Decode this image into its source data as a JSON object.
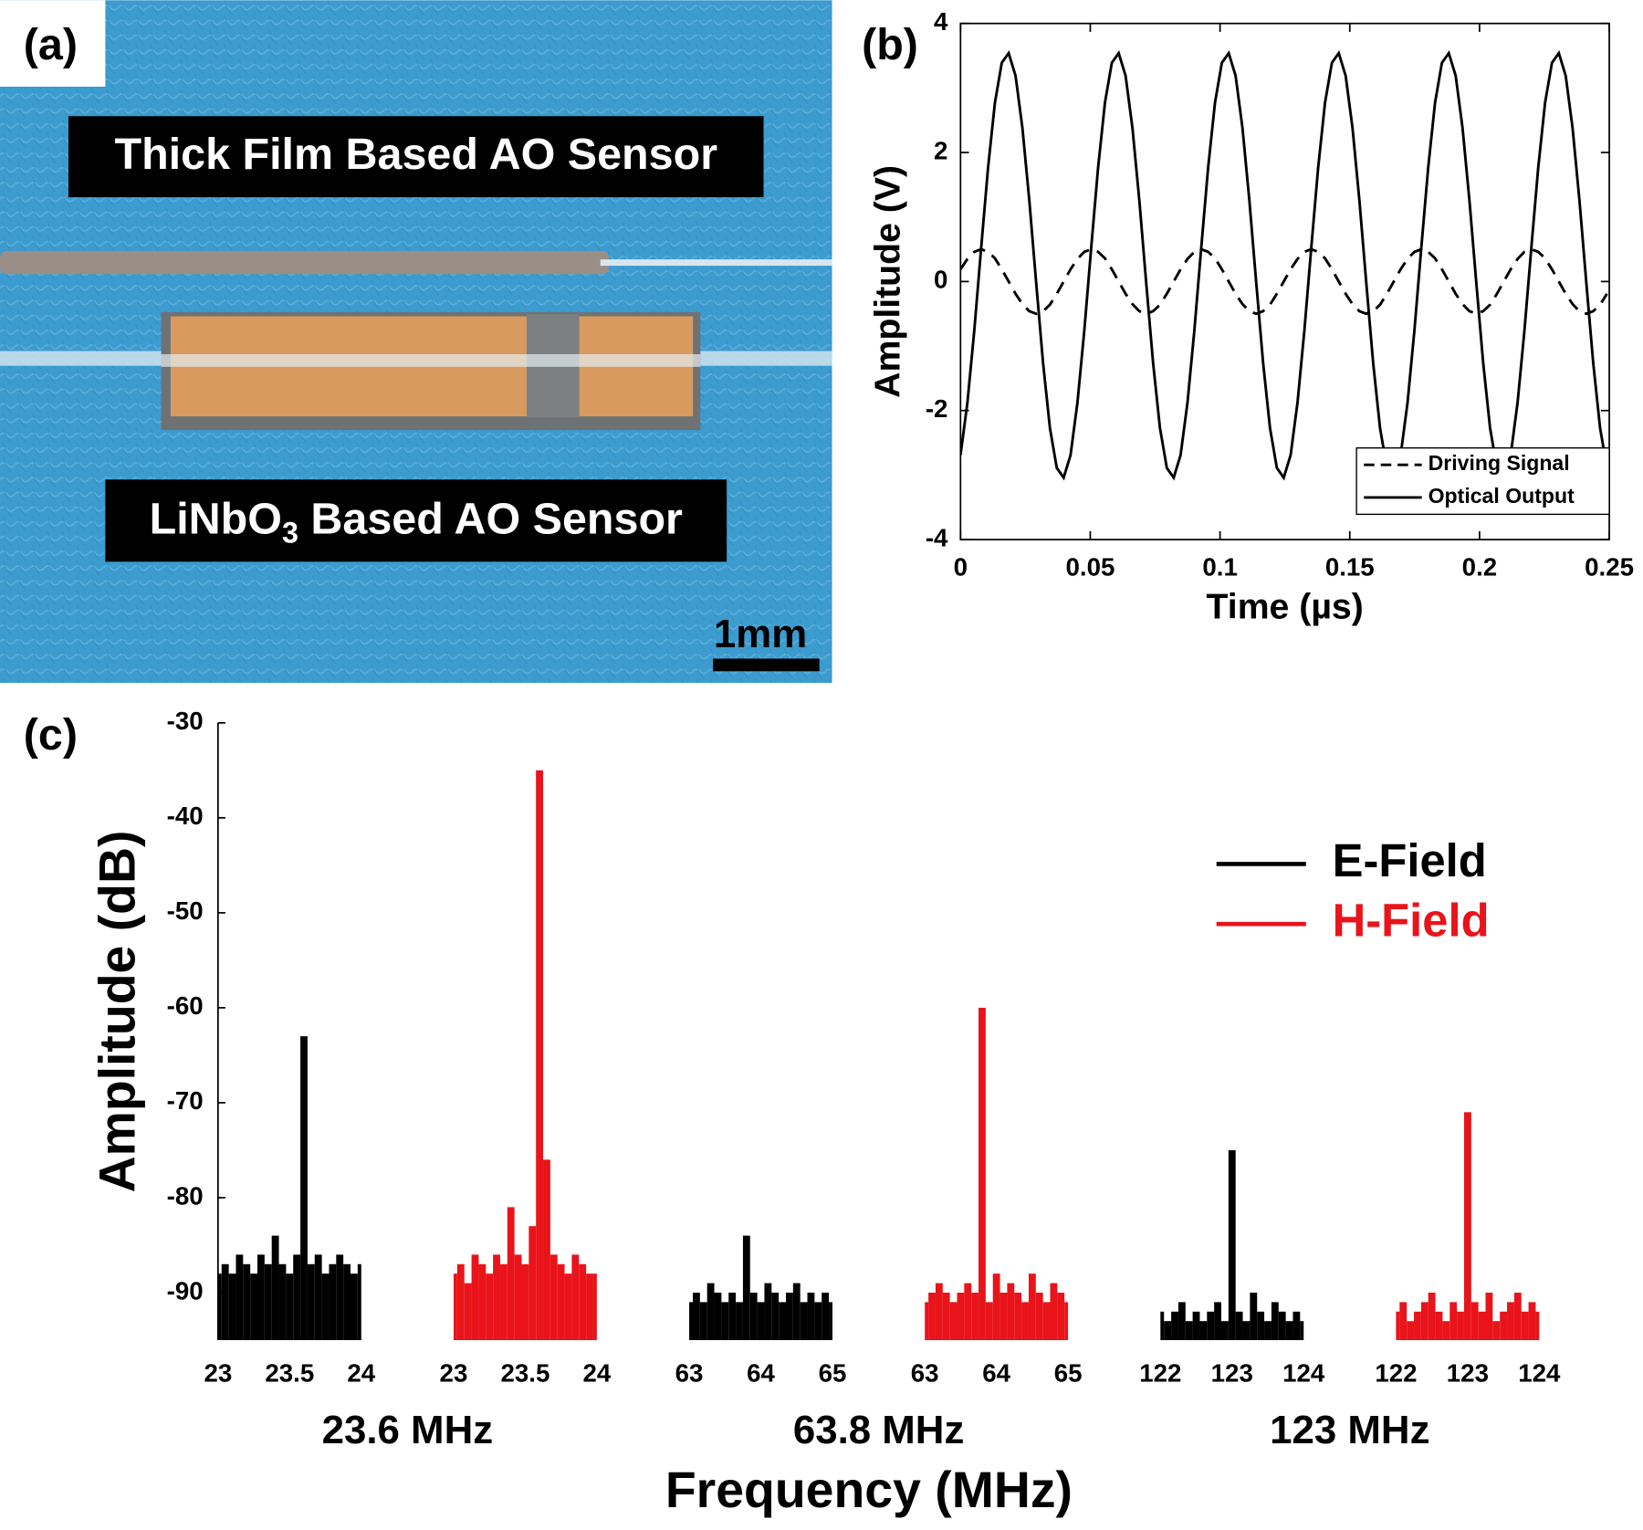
{
  "panel_a": {
    "label": "(a)",
    "top_label": "Thick Film Based AO Sensor",
    "bottom_label": {
      "main": "LiNbO",
      "subscript": "3",
      "rest": " Based AO Sensor"
    },
    "scale_bar": "1mm"
  },
  "chart_data": [
    {
      "type": "line",
      "label": "(b)",
      "xlabel": "Time (µs)",
      "ylabel": "Amplitude (V)",
      "xlim": [
        0,
        0.25
      ],
      "ylim": [
        -4,
        4
      ],
      "xticks": [
        0,
        0.05,
        0.1,
        0.15,
        0.2,
        0.25
      ],
      "yticks": [
        -4,
        -2,
        0,
        2,
        4
      ],
      "legend": "lower right",
      "x": [
        0,
        0.00265,
        0.0053,
        0.00795,
        0.0106,
        0.01325,
        0.0159,
        0.01855,
        0.0212,
        0.02385,
        0.0265,
        0.02915,
        0.0318,
        0.03445,
        0.0371,
        0.03975,
        0.0424,
        0.04505,
        0.0477,
        0.05035,
        0.053,
        0.05565,
        0.0583,
        0.06095,
        0.0636,
        0.06625,
        0.0689,
        0.07155,
        0.0742,
        0.07685,
        0.0795,
        0.08215,
        0.0848,
        0.08745,
        0.0901,
        0.09275,
        0.0954,
        0.09805,
        0.1007,
        0.10335,
        0.106,
        0.10865,
        0.1113,
        0.11395,
        0.1166,
        0.11925,
        0.1219,
        0.12455,
        0.1272,
        0.12985,
        0.1325,
        0.13515,
        0.1378,
        0.14045,
        0.1431,
        0.14575,
        0.1484,
        0.15105,
        0.1537,
        0.15635,
        0.159,
        0.16165,
        0.1643,
        0.16695,
        0.1696,
        0.17225,
        0.1749,
        0.17755,
        0.1802,
        0.18285,
        0.1855,
        0.18815,
        0.1908,
        0.19345,
        0.1961,
        0.19875,
        0.2014,
        0.20405,
        0.2067,
        0.20935,
        0.212,
        0.21465,
        0.2173,
        0.21995,
        0.2226,
        0.22525,
        0.2279,
        0.23055,
        0.2332,
        0.23585,
        0.2385,
        0.24115,
        0.2438,
        0.24645,
        0.2491
      ],
      "series": [
        {
          "name": "Driving Signal",
          "color": "#000000",
          "dash": "dashed",
          "values": [
            0.19,
            0.35,
            0.46,
            0.5,
            0.46,
            0.36,
            0.19,
            0,
            -0.19,
            -0.35,
            -0.46,
            -0.5,
            -0.46,
            -0.36,
            -0.19,
            0,
            0.19,
            0.35,
            0.46,
            0.5,
            0.46,
            0.36,
            0.19,
            0,
            -0.19,
            -0.35,
            -0.46,
            -0.5,
            -0.46,
            -0.36,
            -0.19,
            0,
            0.19,
            0.35,
            0.46,
            0.5,
            0.46,
            0.36,
            0.19,
            0,
            -0.19,
            -0.35,
            -0.46,
            -0.5,
            -0.46,
            -0.36,
            -0.19,
            0,
            0.19,
            0.35,
            0.46,
            0.5,
            0.46,
            0.36,
            0.19,
            0,
            -0.19,
            -0.35,
            -0.46,
            -0.5,
            -0.46,
            -0.36,
            -0.19,
            0,
            0.19,
            0.35,
            0.46,
            0.5,
            0.46,
            0.36,
            0.19,
            0,
            -0.19,
            -0.35,
            -0.46,
            -0.5,
            -0.46,
            -0.36,
            -0.19,
            0,
            0.19,
            0.35,
            0.46,
            0.5,
            0.46,
            0.36,
            0.19,
            0,
            -0.19,
            -0.35,
            -0.46,
            -0.5,
            -0.46,
            -0.36,
            -0.19
          ]
        },
        {
          "name": "Optical Output",
          "color": "#000000",
          "dash": "solid",
          "values": [
            -2.69,
            -1.88,
            -0.76,
            0.52,
            1.76,
            2.77,
            3.39,
            3.54,
            3.19,
            2.38,
            1.26,
            -0.02,
            -1.26,
            -2.27,
            -2.89,
            -3.04,
            -2.69,
            -1.88,
            -0.76,
            0.52,
            1.76,
            2.77,
            3.39,
            3.54,
            3.19,
            2.38,
            1.26,
            -0.02,
            -1.26,
            -2.27,
            -2.89,
            -3.04,
            -2.69,
            -1.88,
            -0.76,
            0.52,
            1.76,
            2.77,
            3.39,
            3.54,
            3.19,
            2.38,
            1.26,
            -0.02,
            -1.26,
            -2.27,
            -2.89,
            -3.04,
            -2.69,
            -1.88,
            -0.76,
            0.52,
            1.76,
            2.77,
            3.39,
            3.54,
            3.19,
            2.38,
            1.26,
            -0.02,
            -1.26,
            -2.27,
            -2.89,
            -3.04,
            -2.69,
            -1.88,
            -0.76,
            0.52,
            1.76,
            2.77,
            3.39,
            3.54,
            3.19,
            2.38,
            1.26,
            -0.02,
            -1.26,
            -2.27,
            -2.89,
            -3.04,
            -2.69,
            -1.88,
            -0.76,
            0.52,
            1.76,
            2.77,
            3.39,
            3.54,
            3.19,
            2.38,
            1.26,
            -0.02,
            -1.26,
            -2.27,
            -2.89
          ]
        }
      ]
    },
    {
      "type": "spectrum",
      "label": "(c)",
      "xlabel": "Frequency (MHz)",
      "ylabel": "Amplitude (dB)",
      "ylim": [
        -95,
        -30
      ],
      "yticks": [
        -30,
        -40,
        -50,
        -60,
        -70,
        -80,
        -90
      ],
      "legend": "upper right",
      "groups": [
        {
          "label": "23.6 MHz"
        },
        {
          "label": "63.8 MHz"
        },
        {
          "label": "123 MHz"
        }
      ],
      "series": [
        {
          "name": "E-Field",
          "color": "#000000",
          "segments": [
            {
              "xlim": [
                23,
                24
              ],
              "xticks": [
                23,
                23.5,
                24
              ],
              "x": [
                23,
                23.05,
                23.1,
                23.15,
                23.2,
                23.25,
                23.3,
                23.35,
                23.4,
                23.45,
                23.5,
                23.55,
                23.6,
                23.65,
                23.7,
                23.75,
                23.8,
                23.85,
                23.9,
                23.95,
                24
              ],
              "values": [
                -88,
                -87,
                -88,
                -86,
                -87,
                -88,
                -86,
                -87,
                -84,
                -87,
                -88,
                -86,
                -63,
                -87,
                -86,
                -88,
                -87,
                -86,
                -87,
                -88,
                -87
              ]
            },
            {
              "xlim": [
                63,
                65
              ],
              "xticks": [
                63,
                64,
                65
              ],
              "x": [
                63,
                63.1,
                63.2,
                63.3,
                63.4,
                63.5,
                63.6,
                63.7,
                63.8,
                63.9,
                64,
                64.1,
                64.2,
                64.3,
                64.4,
                64.5,
                64.6,
                64.7,
                64.8,
                64.9,
                65
              ],
              "values": [
                -91,
                -90,
                -91,
                -89,
                -90,
                -91,
                -90,
                -91,
                -84,
                -90,
                -91,
                -89,
                -90,
                -91,
                -90,
                -89,
                -91,
                -90,
                -91,
                -90,
                -91
              ]
            },
            {
              "xlim": [
                122,
                124
              ],
              "xticks": [
                122,
                123,
                124
              ],
              "x": [
                122,
                122.1,
                122.2,
                122.3,
                122.4,
                122.5,
                122.6,
                122.7,
                122.8,
                122.9,
                123,
                123.1,
                123.2,
                123.3,
                123.4,
                123.5,
                123.6,
                123.7,
                123.8,
                123.9,
                124
              ],
              "values": [
                -92,
                -93,
                -92,
                -91,
                -93,
                -92,
                -93,
                -92,
                -91,
                -93,
                -75,
                -92,
                -93,
                -90,
                -92,
                -93,
                -91,
                -92,
                -93,
                -92,
                -93
              ]
            }
          ]
        },
        {
          "name": "H-Field",
          "color": "#e8141a",
          "segments": [
            {
              "xlim": [
                23,
                24
              ],
              "xticks": [
                23,
                23.5,
                24
              ],
              "x": [
                23,
                23.05,
                23.1,
                23.15,
                23.2,
                23.25,
                23.3,
                23.35,
                23.4,
                23.45,
                23.5,
                23.55,
                23.6,
                23.65,
                23.7,
                23.75,
                23.8,
                23.85,
                23.9,
                23.95,
                24
              ],
              "values": [
                -88,
                -87,
                -89,
                -86,
                -87,
                -88,
                -86,
                -87,
                -81,
                -86,
                -87,
                -83,
                -35,
                -76,
                -86,
                -87,
                -88,
                -86,
                -87,
                -88,
                -88
              ]
            },
            {
              "xlim": [
                63,
                65
              ],
              "xticks": [
                63,
                64,
                65
              ],
              "x": [
                63,
                63.1,
                63.2,
                63.3,
                63.4,
                63.5,
                63.6,
                63.7,
                63.8,
                63.9,
                64,
                64.1,
                64.2,
                64.3,
                64.4,
                64.5,
                64.6,
                64.7,
                64.8,
                64.9,
                65
              ],
              "values": [
                -91,
                -90,
                -89,
                -90,
                -91,
                -90,
                -89,
                -90,
                -60,
                -91,
                -88,
                -90,
                -89,
                -90,
                -91,
                -88,
                -90,
                -91,
                -89,
                -90,
                -91
              ]
            },
            {
              "xlim": [
                122,
                124
              ],
              "xticks": [
                122,
                123,
                124
              ],
              "x": [
                122,
                122.1,
                122.2,
                122.3,
                122.4,
                122.5,
                122.6,
                122.7,
                122.8,
                122.9,
                123,
                123.1,
                123.2,
                123.3,
                123.4,
                123.5,
                123.6,
                123.7,
                123.8,
                123.9,
                124
              ],
              "values": [
                -92,
                -91,
                -93,
                -92,
                -91,
                -90,
                -92,
                -93,
                -91,
                -92,
                -71,
                -91,
                -92,
                -90,
                -93,
                -92,
                -91,
                -90,
                -92,
                -91,
                -92
              ]
            }
          ]
        }
      ]
    }
  ]
}
